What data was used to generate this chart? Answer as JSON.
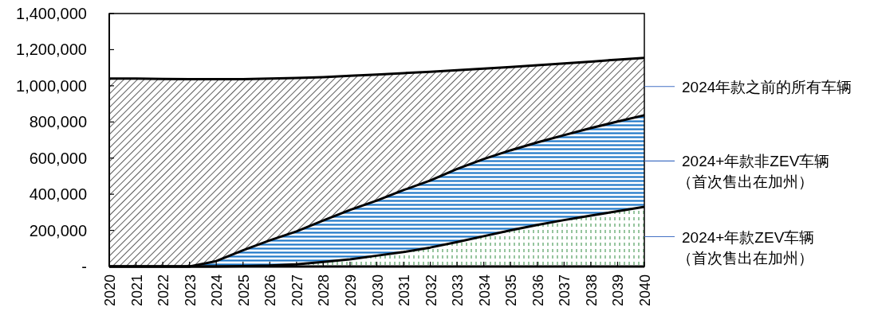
{
  "chart_data": {
    "type": "area",
    "stacked": true,
    "grid": false,
    "legend": false,
    "categories": [
      "2020",
      "2021",
      "2022",
      "2023",
      "2024",
      "2025",
      "2026",
      "2027",
      "2028",
      "2029",
      "2030",
      "2031",
      "2032",
      "2033",
      "2034",
      "2035",
      "2036",
      "2037",
      "2038",
      "2039",
      "2040"
    ],
    "ylim": [
      0,
      1400000
    ],
    "yticks": [
      {
        "value": 0,
        "label": "-"
      },
      {
        "value": 200000,
        "label": "200,000"
      },
      {
        "value": 400000,
        "label": "400,000"
      },
      {
        "value": 600000,
        "label": "600,000"
      },
      {
        "value": 800000,
        "label": "800,000"
      },
      {
        "value": 1000000,
        "label": "1,000,000"
      },
      {
        "value": 1200000,
        "label": "1,200,000"
      },
      {
        "value": 1400000,
        "label": "1,400,000"
      }
    ],
    "series": [
      {
        "name": "2024+年款ZEV车辆（首次售出在加州）",
        "color": "#2e8b3e",
        "values": [
          0,
          0,
          0,
          0,
          0,
          2000,
          5000,
          12000,
          25000,
          40000,
          60000,
          80000,
          105000,
          135000,
          168000,
          200000,
          230000,
          257000,
          282000,
          306000,
          330000
        ]
      },
      {
        "name": "2024+年款非ZEV车辆（首次售出在加州）",
        "color": "#1f78c8",
        "values": [
          0,
          0,
          0,
          0,
          30000,
          88000,
          140000,
          182000,
          230000,
          273000,
          305000,
          343000,
          371000,
          405000,
          427000,
          443000,
          457000,
          470000,
          484000,
          496000,
          507000
        ]
      },
      {
        "name": "2024年款之前的所有车辆",
        "color": "#333333",
        "values": [
          1040000,
          1040000,
          1038000,
          1037000,
          1007000,
          947000,
          895000,
          849000,
          793000,
          742000,
          697000,
          647000,
          602000,
          546000,
          500000,
          461000,
          427000,
          397000,
          368000,
          343000,
          318000
        ]
      }
    ]
  }
}
